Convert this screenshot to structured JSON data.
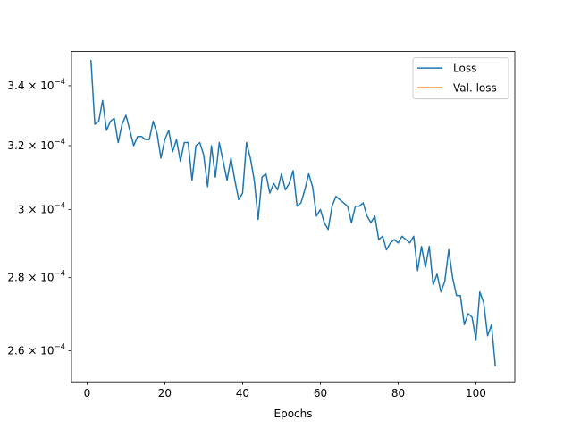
{
  "chart_data": {
    "type": "line",
    "title": "",
    "xlabel": "Epochs",
    "ylabel": "",
    "xlim": [
      -4,
      110
    ],
    "ylim": [
      0.000252,
      0.000352
    ],
    "y_scale": "log",
    "grid": false,
    "legend_placement": "top-right",
    "x_ticks": [
      0,
      20,
      40,
      60,
      80,
      100
    ],
    "x_tick_labels": [
      "0",
      "20",
      "40",
      "60",
      "80",
      "100"
    ],
    "y_ticks": [
      0.00026,
      0.00028,
      0.0003,
      0.00032,
      0.00034
    ],
    "y_tick_labels": [
      {
        "mantissa": "2.6",
        "base": "10",
        "exp": "−4"
      },
      {
        "mantissa": "2.8",
        "base": "10",
        "exp": "−4"
      },
      {
        "mantissa": "3",
        "base": "10",
        "exp": "−4"
      },
      {
        "mantissa": "3.2",
        "base": "10",
        "exp": "−4"
      },
      {
        "mantissa": "3.4",
        "base": "10",
        "exp": "−4"
      }
    ],
    "series": [
      {
        "name": "Loss",
        "color": "#1f77b4",
        "x": [
          1,
          2,
          3,
          4,
          5,
          6,
          7,
          8,
          9,
          10,
          11,
          12,
          13,
          14,
          15,
          16,
          17,
          18,
          19,
          20,
          21,
          22,
          23,
          24,
          25,
          26,
          27,
          28,
          29,
          30,
          31,
          32,
          33,
          34,
          35,
          36,
          37,
          38,
          39,
          40,
          41,
          42,
          43,
          44,
          45,
          46,
          47,
          48,
          49,
          50,
          51,
          52,
          53,
          54,
          55,
          56,
          57,
          58,
          59,
          60,
          61,
          62,
          63,
          64,
          65,
          66,
          67,
          68,
          69,
          70,
          71,
          72,
          73,
          74,
          75,
          76,
          77,
          78,
          79,
          80,
          81,
          82,
          83,
          84,
          85,
          86,
          87,
          88,
          89,
          90,
          91,
          92,
          93,
          94,
          95,
          96,
          97,
          98,
          99,
          100,
          101,
          102,
          103,
          104,
          105
        ],
        "y": [
          0.000349,
          0.000327,
          0.000328,
          0.000335,
          0.000325,
          0.000328,
          0.000329,
          0.000321,
          0.000327,
          0.00033,
          0.000325,
          0.00032,
          0.000323,
          0.000323,
          0.000322,
          0.000322,
          0.000328,
          0.000324,
          0.000316,
          0.000322,
          0.000325,
          0.000318,
          0.000322,
          0.000315,
          0.000321,
          0.000321,
          0.000309,
          0.00032,
          0.000321,
          0.000317,
          0.000307,
          0.00032,
          0.00031,
          0.000321,
          0.000315,
          0.000309,
          0.000316,
          0.000309,
          0.000303,
          0.000305,
          0.000321,
          0.000316,
          0.000309,
          0.000297,
          0.00031,
          0.000311,
          0.000305,
          0.000308,
          0.000306,
          0.000311,
          0.000306,
          0.000308,
          0.000312,
          0.000301,
          0.000302,
          0.000306,
          0.000311,
          0.000307,
          0.000298,
          0.0003,
          0.000296,
          0.000294,
          0.000301,
          0.000304,
          0.000303,
          0.000302,
          0.000301,
          0.000296,
          0.000301,
          0.000301,
          0.000302,
          0.000298,
          0.000296,
          0.000298,
          0.000291,
          0.000292,
          0.000288,
          0.00029,
          0.000291,
          0.00029,
          0.000292,
          0.000291,
          0.00029,
          0.000292,
          0.000282,
          0.000289,
          0.000283,
          0.000289,
          0.000278,
          0.000281,
          0.000276,
          0.000279,
          0.000288,
          0.00028,
          0.000275,
          0.000275,
          0.000267,
          0.00027,
          0.000269,
          0.000263,
          0.000276,
          0.000273,
          0.000264,
          0.000267,
          0.000256
        ]
      },
      {
        "name": "Val. loss",
        "color": "#ff7f0e",
        "x": [],
        "y": []
      }
    ]
  }
}
